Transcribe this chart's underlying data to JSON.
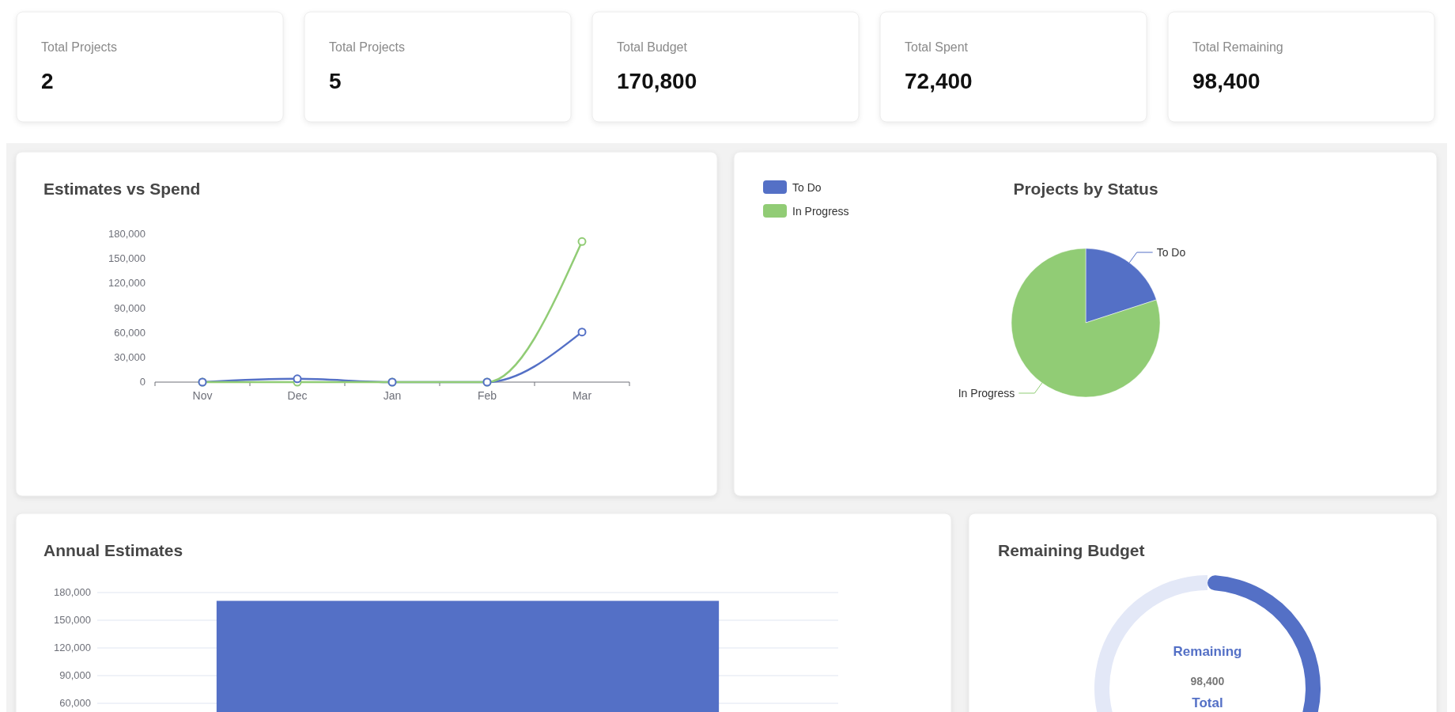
{
  "chart_data": [
    {
      "type": "other",
      "annotations": [
        "Total Projects",
        "2",
        "Total Projects",
        "5",
        "Total Budget",
        "170,800",
        "Total Spent",
        "72,400",
        "Total Remaining",
        "98,400"
      ]
    },
    {
      "type": "line",
      "title": "Estimates vs Spend",
      "categories": [
        "Nov",
        "Dec",
        "Jan",
        "Feb",
        "Mar"
      ],
      "series": [
        {
          "color": "#5470c6",
          "values": [
            0,
            4000,
            0,
            0,
            61000
          ]
        },
        {
          "color": "#91cc75",
          "values": [
            0,
            0,
            0,
            0,
            171000
          ]
        }
      ],
      "ylim": [
        0,
        180000
      ],
      "yticks": [
        {
          "value": 0,
          "label": "0"
        },
        {
          "value": 30000,
          "label": "30,000"
        },
        {
          "value": 60000,
          "label": "60,000"
        },
        {
          "value": 90000,
          "label": "90,000"
        },
        {
          "value": 120000,
          "label": "120,000"
        },
        {
          "value": 150000,
          "label": "150,000"
        },
        {
          "value": 180000,
          "label": "180,000"
        }
      ],
      "marker": "circle"
    },
    {
      "type": "pie",
      "title": "Projects by Status",
      "categories": [
        "To Do",
        "In Progress"
      ],
      "values": [
        20,
        80
      ],
      "colors": [
        "#5470c6",
        "#91cc75"
      ],
      "legend": "top left"
    },
    {
      "type": "bar",
      "title": "Annual Estimates",
      "categories": [
        null
      ],
      "values": [
        171000
      ],
      "color": "#5470c6",
      "ylim": [
        0,
        180000
      ],
      "yticks": [
        {
          "value": 60000,
          "label": "60,000"
        },
        {
          "value": 90000,
          "label": "90,000"
        },
        {
          "value": 120000,
          "label": "120,000"
        },
        {
          "value": 150000,
          "label": "150,000"
        },
        {
          "value": 180000,
          "label": "180,000"
        }
      ],
      "grid": "y"
    },
    {
      "type": "donut",
      "title": "Remaining Budget",
      "categories": [
        "Remaining",
        null
      ],
      "values": [
        98400,
        72400
      ],
      "colors": [
        "#5470c6",
        "#e3e8f7"
      ],
      "value_labels": [
        "98,400",
        null
      ],
      "annotations": [
        "Total"
      ]
    }
  ]
}
